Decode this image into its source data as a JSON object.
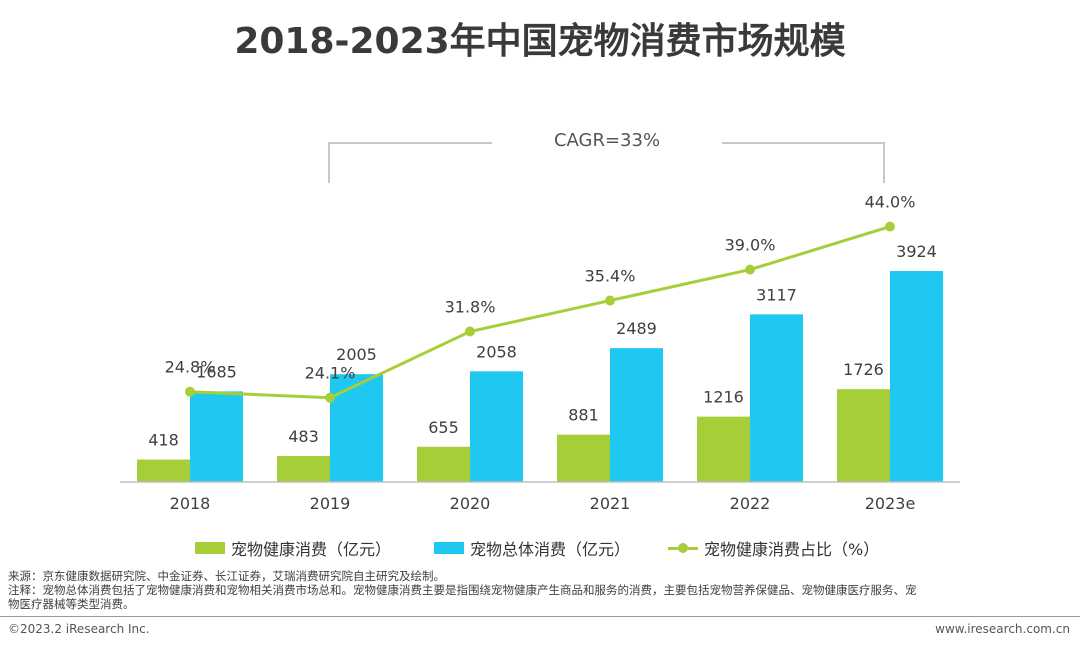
{
  "title": "2018-2023年中国宠物消费市场规模",
  "cagr_label": "CAGR=33%",
  "colors": {
    "health_bar": "#a6ce39",
    "total_bar": "#1ec8f0",
    "ratio_line": "#a6ce39"
  },
  "chart_data": {
    "type": "bar",
    "categories": [
      "2018",
      "2019",
      "2020",
      "2021",
      "2022",
      "2023e"
    ],
    "series": [
      {
        "name": "宠物健康消费（亿元）",
        "type": "bar",
        "values": [
          418,
          483,
          655,
          881,
          1216,
          1726
        ]
      },
      {
        "name": "宠物总体消费（亿元）",
        "type": "bar",
        "values": [
          1685,
          2005,
          2058,
          2489,
          3117,
          3924
        ]
      },
      {
        "name": "宠物健康消费占比（%）",
        "type": "line",
        "values": [
          24.8,
          24.1,
          31.8,
          35.4,
          39.0,
          44.0
        ],
        "labels": [
          "24.8%",
          "24.1%",
          "31.8%",
          "35.4%",
          "39.0%",
          "44.0%"
        ]
      }
    ],
    "grid": false,
    "legend_position": "bottom"
  },
  "legend": {
    "health": "宠物健康消费（亿元）",
    "total": "宠物总体消费（亿元）",
    "ratio": "宠物健康消费占比（%）"
  },
  "notes": {
    "source": "来源：京东健康数据研究院、中金证券、长江证券，艾瑞消费研究院自主研究及绘制。",
    "note_line1": "注释：宠物总体消费包括了宠物健康消费和宠物相关消费市场总和。宠物健康消费主要是指围绕宠物健康产生商品和服务的消费，主要包括宠物营养保健品、宠物健康医疗服务、宠",
    "note_line2": "物医疗器械等类型消费。"
  },
  "footer": {
    "copyright": "©2023.2 iResearch Inc.",
    "website": "www.iresearch.com.cn"
  }
}
